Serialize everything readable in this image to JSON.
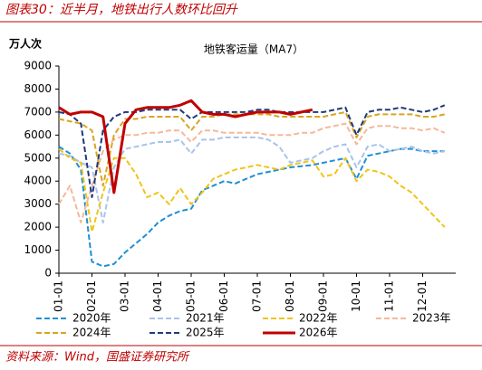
{
  "header": "图表30：近半月，地铁出行人数环比回升",
  "source": "资料来源：Wind，国盛证券研究所",
  "chart_data": {
    "type": "line",
    "title": "地铁客运量（MA7）",
    "y_label": "万人次",
    "categories": [
      "01-01",
      null,
      null,
      "02-01",
      null,
      null,
      "03-01",
      null,
      null,
      "04-01",
      null,
      null,
      "05-01",
      null,
      null,
      "06-01",
      null,
      null,
      "07-01",
      null,
      null,
      "08-01",
      null,
      null,
      "09-01",
      null,
      null,
      "10-01",
      null,
      null,
      "11-01",
      null,
      null,
      "12-01",
      null,
      null
    ],
    "ylim": [
      0,
      9000
    ],
    "yticks": [
      0,
      1000,
      2000,
      3000,
      4000,
      5000,
      6000,
      7000,
      8000,
      9000
    ],
    "grid": false,
    "legend": "bottom",
    "series": [
      {
        "name": "2020年",
        "color": "#1f8fd6",
        "line_style": "dashed",
        "values": [
          5500,
          5200,
          4500,
          500,
          300,
          400,
          900,
          1300,
          1700,
          2200,
          2500,
          2700,
          2800,
          3600,
          3800,
          4000,
          3900,
          4100,
          4300,
          4400,
          4500,
          4600,
          4650,
          4700,
          4800,
          4900,
          5000,
          4100,
          5100,
          5200,
          5300,
          5400,
          5400,
          5300,
          5300,
          5300
        ]
      },
      {
        "name": "2021年",
        "color": "#a9c4e8",
        "line_style": "dashed",
        "values": [
          5200,
          5100,
          4800,
          4600,
          2200,
          4600,
          5400,
          5500,
          5600,
          5700,
          5700,
          5800,
          5200,
          5800,
          5800,
          5900,
          5900,
          5900,
          5900,
          5800,
          5500,
          4800,
          4900,
          5000,
          5300,
          5500,
          5600,
          4600,
          5500,
          5600,
          5300,
          5400,
          5500,
          5300,
          5200,
          5300
        ]
      },
      {
        "name": "2022年",
        "color": "#f0c419",
        "line_style": "dashed",
        "values": [
          5400,
          5000,
          4800,
          1800,
          3500,
          5000,
          5000,
          4300,
          3300,
          3500,
          3000,
          3700,
          3000,
          3500,
          4100,
          4300,
          4500,
          4600,
          4700,
          4600,
          4500,
          4700,
          4800,
          4900,
          4200,
          4300,
          5000,
          4000,
          4500,
          4400,
          4200,
          3800,
          3500,
          3000,
          2500,
          2000
        ]
      },
      {
        "name": "2023年",
        "color": "#f4b89a",
        "line_style": "dashed",
        "values": [
          3000,
          3800,
          2200,
          3800,
          5300,
          5800,
          6000,
          6000,
          6100,
          6100,
          6200,
          6200,
          5700,
          6200,
          6200,
          6100,
          6100,
          6100,
          6100,
          6000,
          6000,
          6000,
          6100,
          6100,
          6300,
          6400,
          6500,
          5600,
          6300,
          6400,
          6400,
          6300,
          6300,
          6200,
          6300,
          6100
        ]
      },
      {
        "name": "2024年",
        "color": "#d9a520",
        "line_style": "dashed",
        "values": [
          6700,
          6600,
          6500,
          6200,
          3800,
          6000,
          6700,
          6700,
          6800,
          6800,
          6800,
          6800,
          6200,
          6800,
          6800,
          6900,
          6900,
          6900,
          6900,
          6900,
          6800,
          6800,
          6800,
          6800,
          6800,
          6900,
          7000,
          5900,
          6800,
          6900,
          6900,
          6900,
          6900,
          6800,
          6800,
          6900
        ]
      },
      {
        "name": "2025年",
        "color": "#1f3a7a",
        "line_style": "dashed",
        "values": [
          7000,
          6900,
          6500,
          3300,
          6200,
          6800,
          7000,
          7000,
          7100,
          7100,
          7100,
          7100,
          6700,
          7000,
          7000,
          7000,
          7000,
          7000,
          7100,
          7100,
          7000,
          7000,
          7000,
          7000,
          7000,
          7100,
          7200,
          6000,
          7000,
          7100,
          7100,
          7200,
          7100,
          7000,
          7100,
          7300
        ]
      },
      {
        "name": "2026年",
        "color": "#c00000",
        "line_style": "solid",
        "values": [
          7200,
          6900,
          7000,
          7000,
          6800,
          3500,
          6500,
          7100,
          7200,
          7200,
          7200,
          7300,
          7500,
          7000,
          6900,
          6900,
          6800,
          6900,
          7000,
          7000,
          7000,
          6900,
          7000,
          7100,
          null,
          null,
          null,
          null,
          null,
          null,
          null,
          null,
          null,
          null,
          null,
          null
        ]
      }
    ]
  }
}
